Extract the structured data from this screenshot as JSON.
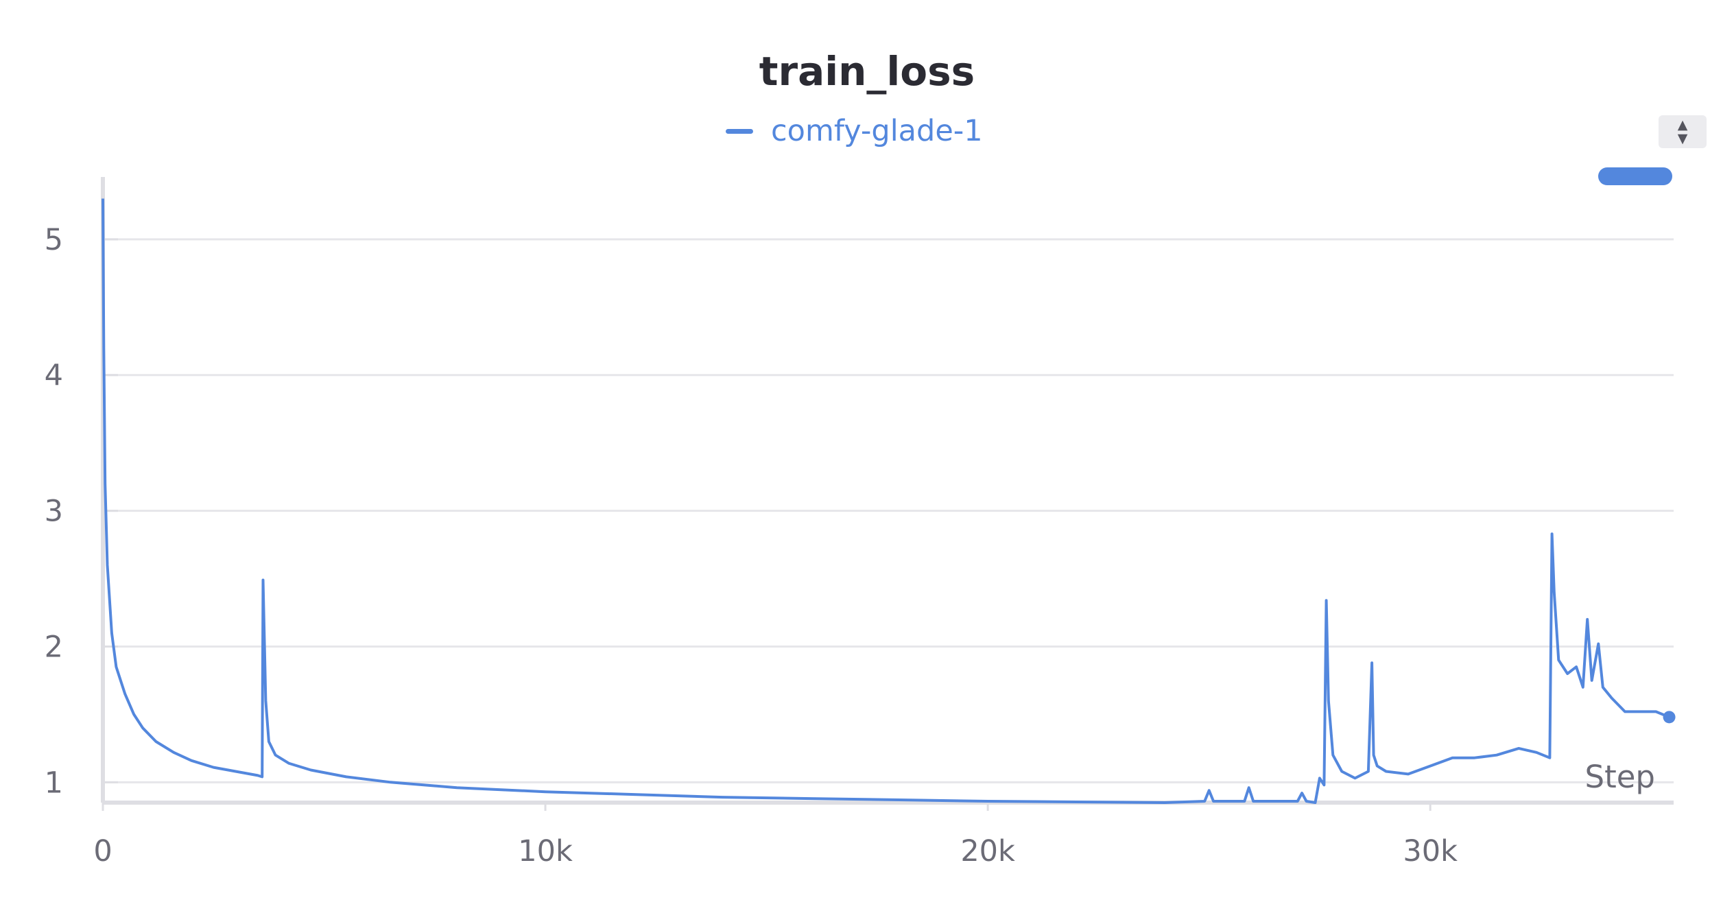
{
  "chart_data": {
    "type": "line",
    "title": "train_loss",
    "xlabel": "Step",
    "ylabel": "",
    "xlim": [
      0,
      35500
    ],
    "ylim": [
      0.85,
      5.55
    ],
    "x_ticks": [
      0,
      10000,
      20000,
      30000
    ],
    "x_tick_labels": [
      "0",
      "10k",
      "20k",
      "30k"
    ],
    "y_ticks": [
      1,
      2,
      3,
      4,
      5
    ],
    "y_tick_labels": [
      "1",
      "2",
      "3",
      "4",
      "5"
    ],
    "grid": true,
    "legend": "top-center",
    "series": [
      {
        "name": "comfy-glade-1",
        "color": "#5387dd",
        "x": [
          0,
          20,
          50,
          100,
          200,
          300,
          500,
          700,
          900,
          1200,
          1600,
          2000,
          2500,
          3000,
          3500,
          3600,
          3620,
          3680,
          3750,
          3900,
          4200,
          4700,
          5500,
          6500,
          8000,
          10000,
          12000,
          14000,
          16000,
          18000,
          20000,
          22000,
          24000,
          24900,
          25000,
          25100,
          25800,
          25900,
          26000,
          27000,
          27100,
          27200,
          27400,
          27500,
          27600,
          27650,
          27700,
          27800,
          28000,
          28300,
          28600,
          28680,
          28720,
          28800,
          29000,
          29500,
          30000,
          30500,
          31000,
          31500,
          32000,
          32400,
          32700,
          32750,
          32800,
          32900,
          33100,
          33300,
          33450,
          33550,
          33650,
          33800,
          33900,
          34100,
          34400,
          34800,
          35100,
          35400
        ],
        "values": [
          5.3,
          4.2,
          3.2,
          2.6,
          2.1,
          1.85,
          1.65,
          1.5,
          1.4,
          1.3,
          1.22,
          1.16,
          1.11,
          1.08,
          1.05,
          1.04,
          2.49,
          1.6,
          1.3,
          1.2,
          1.14,
          1.09,
          1.04,
          1.0,
          0.96,
          0.93,
          0.91,
          0.89,
          0.88,
          0.87,
          0.86,
          0.855,
          0.85,
          0.86,
          0.94,
          0.86,
          0.86,
          0.96,
          0.86,
          0.86,
          0.92,
          0.86,
          0.85,
          1.03,
          0.98,
          2.34,
          1.6,
          1.2,
          1.08,
          1.03,
          1.08,
          1.88,
          1.2,
          1.12,
          1.08,
          1.06,
          1.12,
          1.18,
          1.18,
          1.2,
          1.25,
          1.22,
          1.18,
          2.83,
          2.4,
          1.9,
          1.8,
          1.85,
          1.7,
          2.2,
          1.75,
          2.02,
          1.7,
          1.62,
          1.52,
          1.52,
          1.52,
          1.48
        ]
      }
    ]
  }
}
